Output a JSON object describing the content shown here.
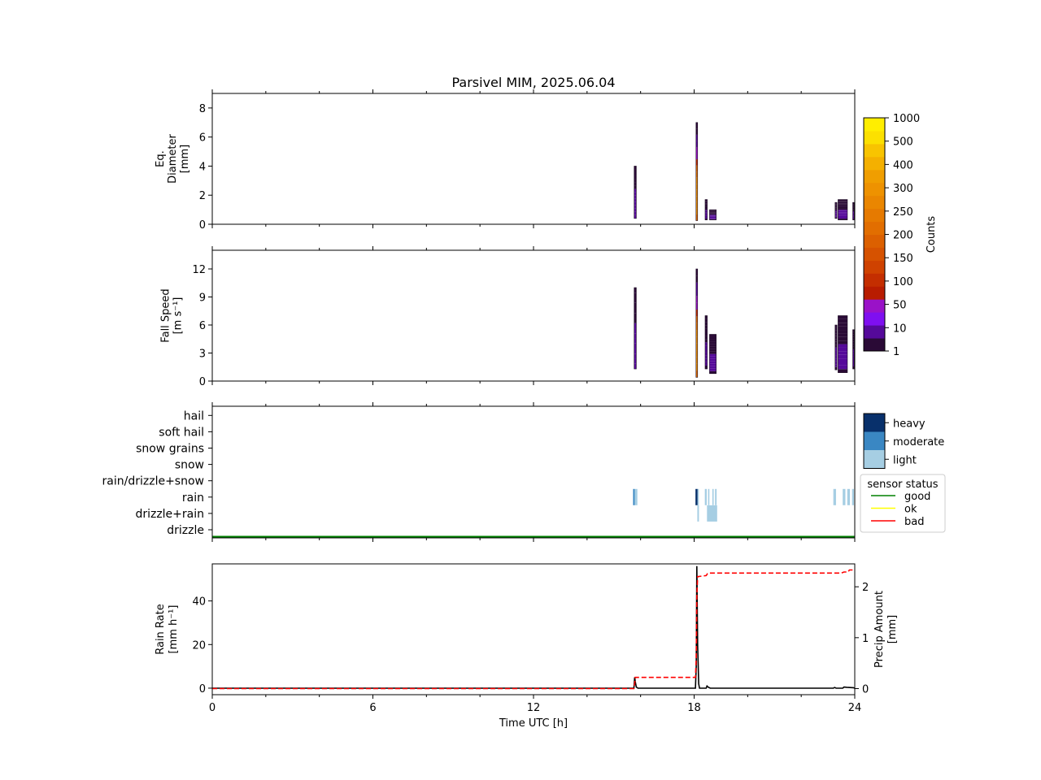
{
  "title": "Parsivel MIM, 2025.06.04",
  "chart_data": [
    {
      "type": "heatmap",
      "panel": "diameter",
      "ylabel_lines": [
        "Eq.",
        "Diameter",
        "[mm]"
      ],
      "x_range": [
        0,
        24
      ],
      "ylim": [
        0,
        9
      ],
      "yticks": [
        0,
        2,
        4,
        6,
        8
      ],
      "events": [
        {
          "t": 15.8,
          "w": 0.08,
          "y0": 0.4,
          "y1": 4.0,
          "peak": 20
        },
        {
          "t": 18.1,
          "w": 0.06,
          "y0": 0.25,
          "y1": 7.0,
          "peak": 400
        },
        {
          "t": 18.45,
          "w": 0.08,
          "y0": 0.3,
          "y1": 1.7,
          "peak": 15
        },
        {
          "t": 18.7,
          "w": 0.25,
          "y0": 0.3,
          "y1": 1.0,
          "peak": 15
        },
        {
          "t": 23.3,
          "w": 0.07,
          "y0": 0.4,
          "y1": 1.5,
          "peak": 15
        },
        {
          "t": 23.55,
          "w": 0.35,
          "y0": 0.3,
          "y1": 1.7,
          "peak": 15
        },
        {
          "t": 23.95,
          "w": 0.05,
          "y0": 0.3,
          "y1": 1.5,
          "peak": 15
        }
      ]
    },
    {
      "type": "heatmap",
      "panel": "fall_speed",
      "ylabel_lines": [
        "Fall Speed",
        "[m s⁻¹]"
      ],
      "x_range": [
        0,
        24
      ],
      "ylim": [
        0,
        14
      ],
      "yticks": [
        0,
        3,
        6,
        9,
        12
      ],
      "events": [
        {
          "t": 15.8,
          "w": 0.08,
          "y0": 1.3,
          "y1": 10.0,
          "peak": 20
        },
        {
          "t": 18.1,
          "w": 0.06,
          "y0": 0.4,
          "y1": 12.0,
          "peak": 400
        },
        {
          "t": 18.45,
          "w": 0.08,
          "y0": 1.3,
          "y1": 7.0,
          "peak": 15
        },
        {
          "t": 18.7,
          "w": 0.25,
          "y0": 0.8,
          "y1": 5.0,
          "peak": 15
        },
        {
          "t": 23.3,
          "w": 0.07,
          "y0": 1.2,
          "y1": 6.0,
          "peak": 15
        },
        {
          "t": 23.55,
          "w": 0.35,
          "y0": 0.9,
          "y1": 7.0,
          "peak": 15
        },
        {
          "t": 23.95,
          "w": 0.05,
          "y0": 1.3,
          "y1": 5.5,
          "peak": 15
        }
      ]
    },
    {
      "type": "heatmap",
      "panel": "precip_type",
      "categories": [
        "drizzle",
        "drizzle+rain",
        "rain",
        "rain/drizzle+snow",
        "snow",
        "snow grains",
        "soft hail",
        "hail"
      ],
      "x_range": [
        0,
        24
      ],
      "intensity_legend": [
        "heavy",
        "moderate",
        "light"
      ],
      "intensity_colors": {
        "light": "#a6cee3",
        "moderate": "#3a87c3",
        "heavy": "#08306b"
      },
      "blocks": [
        {
          "cat": "rain",
          "t0": 15.72,
          "t1": 15.78,
          "level": "moderate"
        },
        {
          "cat": "rain",
          "t0": 15.78,
          "t1": 15.88,
          "level": "light"
        },
        {
          "cat": "rain",
          "t0": 18.05,
          "t1": 18.13,
          "level": "heavy"
        },
        {
          "cat": "rain",
          "t0": 18.13,
          "t1": 18.17,
          "level": "light"
        },
        {
          "cat": "drizzle+rain",
          "t0": 18.12,
          "t1": 18.18,
          "level": "light"
        },
        {
          "cat": "rain",
          "t0": 18.4,
          "t1": 18.47,
          "level": "light"
        },
        {
          "cat": "rain",
          "t0": 18.52,
          "t1": 18.57,
          "level": "light"
        },
        {
          "cat": "rain",
          "t0": 18.68,
          "t1": 18.73,
          "level": "light"
        },
        {
          "cat": "rain",
          "t0": 18.78,
          "t1": 18.84,
          "level": "light"
        },
        {
          "cat": "drizzle+rain",
          "t0": 18.48,
          "t1": 18.86,
          "level": "light"
        },
        {
          "cat": "rain",
          "t0": 23.2,
          "t1": 23.3,
          "level": "light"
        },
        {
          "cat": "rain",
          "t0": 23.55,
          "t1": 23.65,
          "level": "light"
        },
        {
          "cat": "rain",
          "t0": 23.72,
          "t1": 23.82,
          "level": "light"
        },
        {
          "cat": "rain",
          "t0": 23.9,
          "t1": 23.97,
          "level": "light"
        }
      ],
      "sensor_status_legend": {
        "title": "sensor status",
        "entries": [
          {
            "label": "good",
            "color": "#008000"
          },
          {
            "label": "ok",
            "color": "#ffff00"
          },
          {
            "label": "bad",
            "color": "#ff0000"
          }
        ]
      },
      "sensor_status_series": [
        {
          "t0": 0,
          "t1": 24,
          "status": "good"
        }
      ]
    },
    {
      "type": "line",
      "panel": "rain",
      "xlabel": "Time UTC [h]",
      "xticks": [
        0,
        6,
        12,
        18,
        24
      ],
      "x_range": [
        0,
        24
      ],
      "ylabel_lines": [
        "Rain Rate",
        "[mm h⁻¹]"
      ],
      "ylim": [
        -3,
        57
      ],
      "yticks": [
        0,
        20,
        40
      ],
      "y2label_lines": [
        "Precip Amount",
        "[mm]"
      ],
      "y2lim": [
        -0.12,
        2.45
      ],
      "y2ticks": [
        0,
        1,
        2
      ],
      "series": [
        {
          "axis": "left",
          "color": "#000000",
          "style": "solid",
          "x": [
            0,
            15.75,
            15.78,
            15.8,
            15.84,
            15.9,
            18.05,
            18.08,
            18.1,
            18.13,
            18.17,
            18.2,
            18.45,
            18.48,
            18.52,
            18.6,
            23.2,
            23.25,
            23.3,
            23.55,
            23.6,
            23.7,
            23.95,
            24
          ],
          "y": [
            0,
            0,
            5,
            3,
            0.5,
            0,
            0,
            10,
            56,
            20,
            2,
            0,
            0,
            1,
            0.5,
            0,
            0,
            0.3,
            0,
            0,
            0.5,
            0.4,
            0.2,
            0
          ]
        },
        {
          "axis": "right",
          "color": "#ff0000",
          "style": "dashed",
          "x": [
            0,
            15.75,
            15.78,
            15.8,
            18.05,
            18.08,
            18.1,
            18.13,
            18.45,
            18.5,
            18.55,
            23.5,
            23.6,
            23.75,
            23.8,
            24
          ],
          "y": [
            0,
            0,
            0.1,
            0.22,
            0.22,
            0.6,
            1.8,
            2.2,
            2.22,
            2.26,
            2.27,
            2.27,
            2.29,
            2.29,
            2.33,
            2.33
          ]
        }
      ]
    }
  ],
  "colorbar": {
    "label": "Counts",
    "tick_labels": [
      "1",
      "10",
      "50",
      "100",
      "150",
      "200",
      "250",
      "300",
      "400",
      "500",
      "1000"
    ],
    "colors": [
      "#2a0a36",
      "#55099a",
      "#7f0ff0",
      "#9a12c8",
      "#b81c00",
      "#c42e00",
      "#cf4200",
      "#d65200",
      "#dc6000",
      "#e26e00",
      "#e67a00",
      "#ea8600",
      "#ee9200",
      "#f09e00",
      "#f4b000",
      "#f8c400",
      "#fce000",
      "#ffee00"
    ]
  }
}
